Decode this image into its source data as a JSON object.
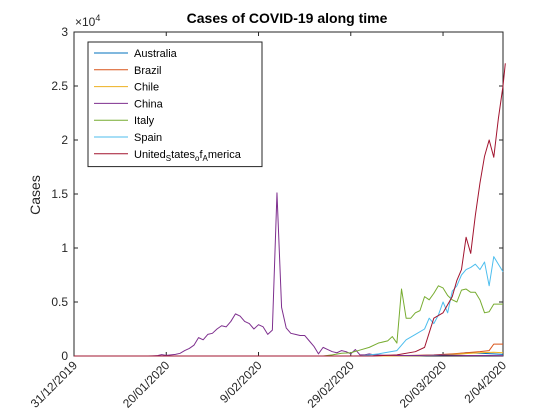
{
  "chart_data": {
    "type": "line",
    "title": "Cases of COVID-19 along time",
    "ylabel": "Cases",
    "xlabel": "",
    "y_exponent_label": "×10",
    "y_exponent_power": "4",
    "ylim": [
      0,
      30000
    ],
    "y_ticks": [
      0,
      5000,
      10000,
      15000,
      20000,
      25000,
      30000
    ],
    "y_tick_labels": [
      "0",
      "0.5",
      "1",
      "1.5",
      "2",
      "2.5",
      "3"
    ],
    "x_range_days": [
      0,
      93
    ],
    "x_ticks": [
      0,
      20,
      40,
      60,
      80,
      93
    ],
    "x_tick_labels": [
      "31/12/2019",
      "20/01/2020",
      "9/02/2020",
      "29/02/2020",
      "20/03/2020",
      "2/04/2020"
    ],
    "legend_position": "top-left",
    "series": [
      {
        "name": "Australia",
        "color": "#0072BD",
        "points": [
          [
            0,
            0
          ],
          [
            60,
            0
          ],
          [
            70,
            10
          ],
          [
            78,
            50
          ],
          [
            82,
            150
          ],
          [
            85,
            300
          ],
          [
            88,
            250
          ],
          [
            91,
            200
          ],
          [
            93,
            150
          ]
        ]
      },
      {
        "name": "Brazil",
        "color": "#D95319",
        "points": [
          [
            0,
            0
          ],
          [
            60,
            0
          ],
          [
            70,
            20
          ],
          [
            78,
            100
          ],
          [
            82,
            200
          ],
          [
            85,
            300
          ],
          [
            88,
            400
          ],
          [
            90,
            500
          ],
          [
            91,
            1100
          ],
          [
            93,
            1100
          ]
        ]
      },
      {
        "name": "Chile",
        "color": "#EDB120",
        "points": [
          [
            0,
            0
          ],
          [
            65,
            0
          ],
          [
            75,
            20
          ],
          [
            80,
            100
          ],
          [
            84,
            200
          ],
          [
            88,
            300
          ],
          [
            91,
            350
          ],
          [
            93,
            300
          ]
        ]
      },
      {
        "name": "China",
        "color": "#7E2F8E",
        "points": [
          [
            0,
            0
          ],
          [
            16,
            0
          ],
          [
            17,
            15
          ],
          [
            18,
            30
          ],
          [
            19,
            130
          ],
          [
            20,
            60
          ],
          [
            22,
            150
          ],
          [
            23,
            250
          ],
          [
            24,
            500
          ],
          [
            25,
            700
          ],
          [
            26,
            1000
          ],
          [
            27,
            1700
          ],
          [
            28,
            1500
          ],
          [
            29,
            2000
          ],
          [
            30,
            2100
          ],
          [
            31,
            2500
          ],
          [
            32,
            2800
          ],
          [
            33,
            2700
          ],
          [
            34,
            3200
          ],
          [
            35,
            3900
          ],
          [
            36,
            3700
          ],
          [
            37,
            3200
          ],
          [
            38,
            3000
          ],
          [
            39,
            2500
          ],
          [
            40,
            2900
          ],
          [
            41,
            2700
          ],
          [
            42,
            2000
          ],
          [
            43,
            2400
          ],
          [
            44,
            15100
          ],
          [
            45,
            4500
          ],
          [
            46,
            2600
          ],
          [
            47,
            2100
          ],
          [
            48,
            2000
          ],
          [
            49,
            1900
          ],
          [
            50,
            1900
          ],
          [
            51,
            1400
          ],
          [
            52,
            900
          ],
          [
            53,
            200
          ],
          [
            54,
            800
          ],
          [
            55,
            600
          ],
          [
            56,
            400
          ],
          [
            57,
            300
          ],
          [
            58,
            500
          ],
          [
            59,
            400
          ],
          [
            60,
            200
          ],
          [
            61,
            600
          ],
          [
            62,
            100
          ],
          [
            63,
            100
          ],
          [
            64,
            200
          ],
          [
            65,
            100
          ],
          [
            70,
            50
          ],
          [
            75,
            50
          ],
          [
            80,
            100
          ],
          [
            85,
            50
          ],
          [
            90,
            50
          ],
          [
            93,
            30
          ]
        ]
      },
      {
        "name": "Italy",
        "color": "#77AC30",
        "points": [
          [
            0,
            0
          ],
          [
            54,
            0
          ],
          [
            56,
            100
          ],
          [
            58,
            250
          ],
          [
            60,
            300
          ],
          [
            62,
            550
          ],
          [
            64,
            800
          ],
          [
            66,
            1200
          ],
          [
            68,
            1400
          ],
          [
            69,
            1800
          ],
          [
            70,
            1200
          ],
          [
            71,
            6200
          ],
          [
            72,
            3500
          ],
          [
            73,
            3500
          ],
          [
            74,
            4000
          ],
          [
            75,
            4200
          ],
          [
            76,
            5500
          ],
          [
            77,
            5200
          ],
          [
            78,
            5800
          ],
          [
            79,
            6500
          ],
          [
            80,
            6300
          ],
          [
            81,
            5600
          ],
          [
            82,
            5200
          ],
          [
            83,
            5000
          ],
          [
            84,
            6100
          ],
          [
            85,
            6200
          ],
          [
            86,
            5900
          ],
          [
            87,
            5900
          ],
          [
            88,
            5200
          ],
          [
            89,
            4000
          ],
          [
            90,
            4100
          ],
          [
            91,
            4800
          ],
          [
            93,
            4800
          ]
        ]
      },
      {
        "name": "Spain",
        "color": "#4DBEEE",
        "points": [
          [
            0,
            0
          ],
          [
            62,
            0
          ],
          [
            66,
            200
          ],
          [
            70,
            500
          ],
          [
            72,
            1500
          ],
          [
            74,
            2000
          ],
          [
            76,
            2500
          ],
          [
            77,
            3500
          ],
          [
            78,
            3000
          ],
          [
            79,
            3800
          ],
          [
            80,
            5000
          ],
          [
            81,
            4000
          ],
          [
            82,
            6000
          ],
          [
            83,
            6500
          ],
          [
            84,
            7500
          ],
          [
            85,
            8000
          ],
          [
            86,
            8200
          ],
          [
            87,
            8500
          ],
          [
            88,
            8000
          ],
          [
            89,
            8700
          ],
          [
            90,
            6500
          ],
          [
            91,
            9200
          ],
          [
            92,
            8500
          ],
          [
            93,
            7800
          ]
        ]
      },
      {
        "name": "United_States_of_America",
        "color": "#A2142F",
        "points": [
          [
            0,
            0
          ],
          [
            65,
            0
          ],
          [
            70,
            100
          ],
          [
            74,
            400
          ],
          [
            76,
            800
          ],
          [
            78,
            3500
          ],
          [
            80,
            4000
          ],
          [
            82,
            5500
          ],
          [
            83,
            7000
          ],
          [
            84,
            8000
          ],
          [
            85,
            11000
          ],
          [
            86,
            9500
          ],
          [
            87,
            13000
          ],
          [
            88,
            16000
          ],
          [
            89,
            18500
          ],
          [
            90,
            20000
          ],
          [
            91,
            18400
          ],
          [
            92,
            22000
          ],
          [
            93,
            25000
          ],
          [
            93.5,
            27100
          ]
        ]
      }
    ]
  }
}
